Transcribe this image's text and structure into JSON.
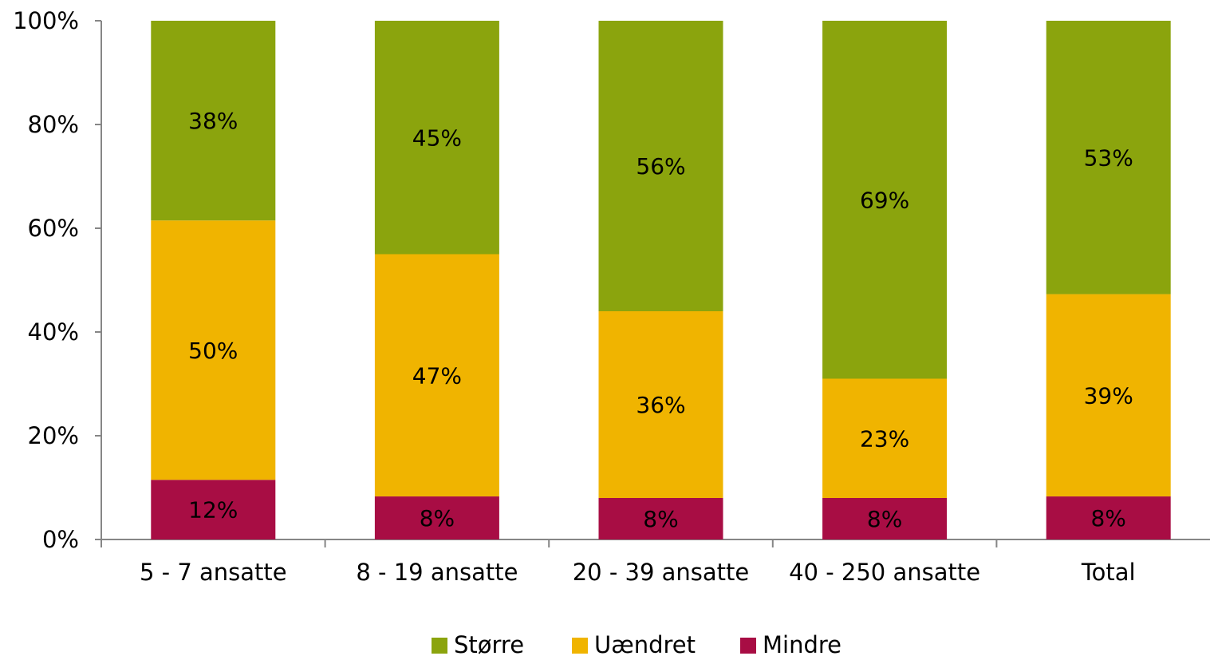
{
  "chart_data": {
    "type": "bar",
    "stacked": true,
    "categories": [
      "5 - 7 ansatte",
      "8 - 19 ansatte",
      "20 - 39 ansatte",
      "40 - 250 ansatte",
      "Total"
    ],
    "series": [
      {
        "name": "Mindre",
        "color": "#A80D44",
        "values": [
          11.5,
          8.3,
          8.0,
          8.0,
          8.3
        ],
        "labels": [
          "12%",
          "8%",
          "8%",
          "8%",
          "8%"
        ]
      },
      {
        "name": "Uændret",
        "color": "#F0B400",
        "values": [
          50.0,
          46.7,
          36.0,
          23.0,
          39.0
        ],
        "labels": [
          "50%",
          "47%",
          "36%",
          "23%",
          "39%"
        ]
      },
      {
        "name": "Større",
        "color": "#8BA40D",
        "values": [
          38.5,
          45.0,
          56.0,
          69.0,
          52.7
        ],
        "labels": [
          "38%",
          "45%",
          "56%",
          "69%",
          "53%"
        ]
      }
    ],
    "legend_order": [
      "Større",
      "Uændret",
      "Mindre"
    ],
    "yticks": [
      "0%",
      "20%",
      "40%",
      "60%",
      "80%",
      "100%"
    ],
    "ylim": [
      0,
      100
    ],
    "legend_position": "bottom",
    "grid": false
  }
}
